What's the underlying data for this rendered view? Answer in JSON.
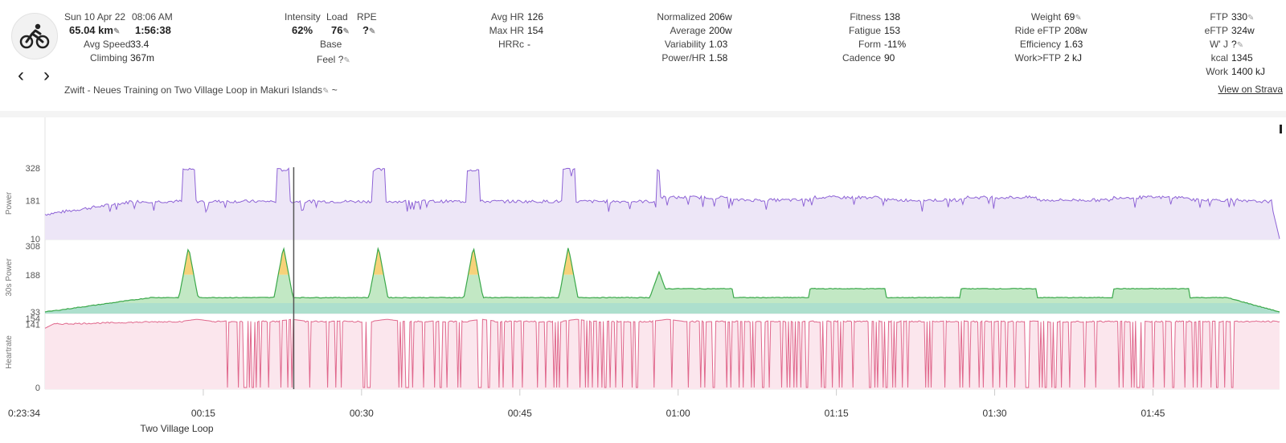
{
  "activity": {
    "date": "Sun 10 Apr 22",
    "time": "08:06 AM",
    "distance": "65.04 km",
    "duration": "1:56:38",
    "avg_speed_label": "Avg Speed",
    "avg_speed": "33.4",
    "climbing_label": "Climbing",
    "climbing": "367m",
    "title": "Zwift - Neues Training on Two Village Loop in Makuri Islands",
    "title_suffix": "~",
    "strava_link": "View on Strava",
    "icon": "cycling-icon"
  },
  "load": {
    "intensity_label": "Intensity",
    "intensity": "62%",
    "load_label": "Load",
    "load": "76",
    "rpe_label": "RPE",
    "rpe": "?",
    "base_label": "Base",
    "feel_label": "Feel",
    "feel": "?"
  },
  "hr": {
    "avg_label": "Avg HR",
    "avg": "126",
    "max_label": "Max HR",
    "max": "154",
    "hrrc_label": "HRRc",
    "hrrc": "-"
  },
  "power": {
    "normalized_label": "Normalized",
    "normalized": "206w",
    "average_label": "Average",
    "average": "200w",
    "variability_label": "Variability",
    "variability": "1.03",
    "powerhr_label": "Power/HR",
    "powerhr": "1.58"
  },
  "fitness": {
    "fitness_label": "Fitness",
    "fitness": "138",
    "fatigue_label": "Fatigue",
    "fatigue": "153",
    "form_label": "Form",
    "form": "-11%",
    "cadence_label": "Cadence",
    "cadence": "90"
  },
  "weight": {
    "weight_label": "Weight",
    "weight": "69",
    "ride_eftp_label": "Ride eFTP",
    "ride_eftp": "208w",
    "efficiency_label": "Efficiency",
    "efficiency": "1.63",
    "work_ftp_label": "Work>FTP",
    "work_ftp": "2 kJ"
  },
  "ftp": {
    "ftp_label": "FTP",
    "ftp": "330",
    "eftp_label": "eFTP",
    "eftp": "324w",
    "wj_label": "W' J",
    "wj": "?",
    "kcal_label": "kcal",
    "kcal": "1345",
    "work_label": "Work",
    "work": "1400 kJ"
  },
  "chart": {
    "panels": [
      {
        "label": "Power",
        "ticks": [
          "328",
          "181",
          "10"
        ],
        "color": "#8e63d6"
      },
      {
        "label": "30s Power",
        "ticks": [
          "308",
          "188",
          "33"
        ],
        "color": "#3aa84a"
      },
      {
        "label": "Heartrate",
        "ticks": [
          "154",
          "141",
          "0"
        ],
        "color": "#e0678c"
      }
    ],
    "cursor_time": "0:23:34",
    "time_ticks": [
      "00:15",
      "00:30",
      "00:45",
      "01:00",
      "01:15",
      "01:30",
      "01:45"
    ],
    "segment_label": "Two Village Loop"
  },
  "chart_data": {
    "type": "line",
    "x_unit": "minutes",
    "x_range": [
      0,
      117
    ],
    "series": [
      {
        "name": "Power",
        "ylim": [
          10,
          328
        ],
        "intervals_minutes": [
          [
            13,
            14.2
          ],
          [
            22,
            23.2
          ],
          [
            31,
            32.2
          ],
          [
            40,
            41.2
          ],
          [
            49,
            50.3
          ],
          [
            58,
            58.3
          ]
        ],
        "base_value": 181
      },
      {
        "name": "30s Power",
        "ylim": [
          33,
          308
        ],
        "peaks_minutes": [
          13.6,
          22.6,
          31.6,
          40.6,
          49.6,
          58.2
        ],
        "base_value": 33
      },
      {
        "name": "Heartrate",
        "ylim": [
          0,
          154
        ],
        "base_value": 141
      }
    ],
    "time_ticks": [
      "00:15",
      "00:30",
      "00:45",
      "01:00",
      "01:15",
      "01:30",
      "01:45"
    ]
  },
  "colors": {
    "power": "#8e63d6",
    "power_fill": "#ede6f7",
    "p30_green": "#3aa84a",
    "p30_fill": "#c2e8c4",
    "p30_yellow": "#f6d27a",
    "p30_orange": "#f08a3c",
    "p30_teal": "#5bbfae",
    "hr": "#e0678c",
    "hr_fill": "#fbe6ed"
  }
}
